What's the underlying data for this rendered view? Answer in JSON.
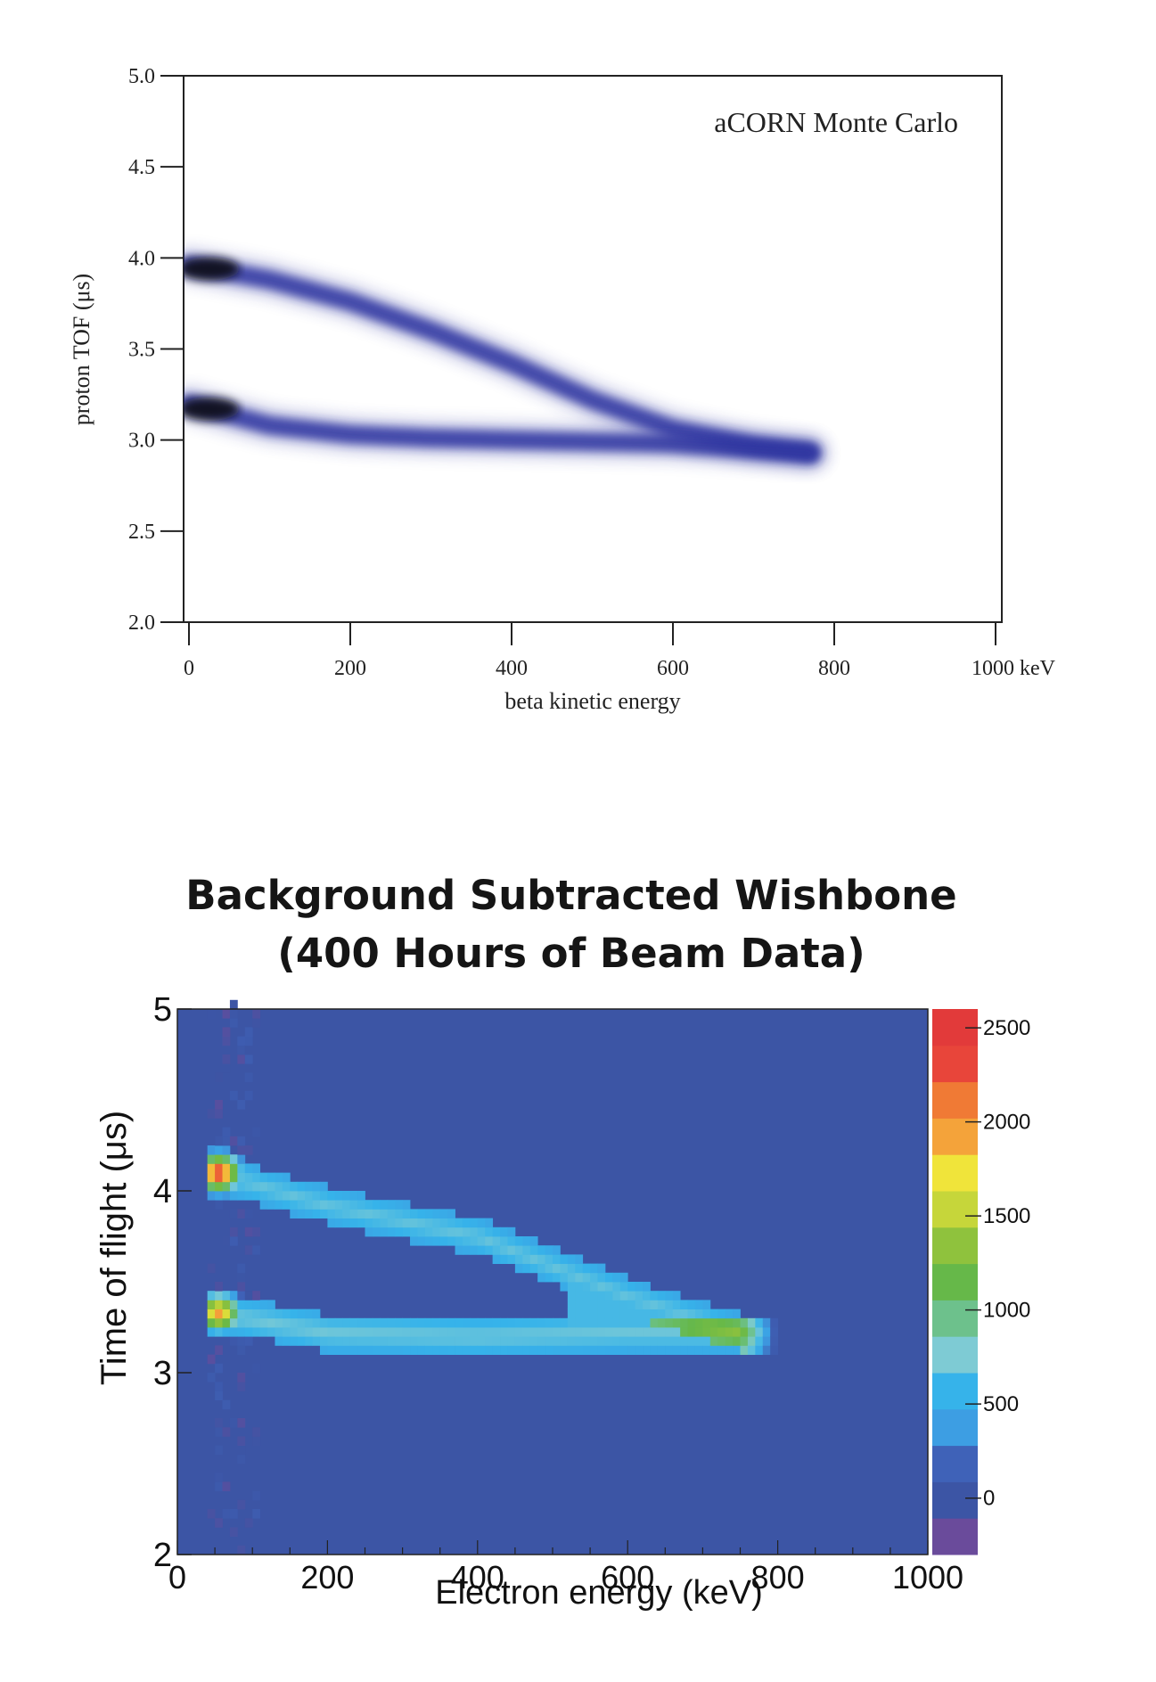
{
  "chart_data": [
    {
      "type": "heatmap",
      "title": "",
      "annotation": "aCORN Monte Carlo",
      "xlabel": "beta kinetic energy",
      "ylabel": "proton TOF (μs)",
      "xlim": [
        0,
        1000
      ],
      "ylim": [
        2.0,
        5.0
      ],
      "x_tick_labels": [
        "0",
        "200",
        "400",
        "600",
        "800",
        "1000 keV"
      ],
      "y_tick_labels": [
        "2.0",
        "2.5",
        "3.0",
        "3.5",
        "4.0",
        "4.5",
        "5.0"
      ],
      "grid": false,
      "colors": {
        "band": "#2f36a0",
        "peak": "#101018"
      },
      "bands": [
        {
          "name": "",
          "points": [
            [
              0,
              3.96
            ],
            [
              100,
              3.88
            ],
            [
              200,
              3.76
            ],
            [
              300,
              3.6
            ],
            [
              400,
              3.42
            ],
            [
              500,
              3.22
            ],
            [
              600,
              3.06
            ],
            [
              700,
              2.97
            ],
            [
              770,
              2.93
            ]
          ]
        },
        {
          "name": "",
          "points": [
            [
              0,
              3.2
            ],
            [
              100,
              3.08
            ],
            [
              200,
              3.03
            ],
            [
              300,
              3.01
            ],
            [
              400,
              3.0
            ],
            [
              500,
              2.99
            ],
            [
              600,
              2.98
            ],
            [
              700,
              2.95
            ],
            [
              770,
              2.93
            ]
          ]
        }
      ]
    },
    {
      "type": "heatmap",
      "title": "Background Subtracted Wishbone",
      "subtitle": "(400 Hours of Beam Data)",
      "xlabel": "Electron energy (keV)",
      "ylabel": "Time of flight (μs)",
      "xlim": [
        0,
        1000
      ],
      "ylim": [
        2,
        5
      ],
      "x_tick_labels": [
        "0",
        "200",
        "400",
        "600",
        "800",
        "1000"
      ],
      "y_tick_labels": [
        "2",
        "3",
        "4",
        "5"
      ],
      "grid": false,
      "colorbar": {
        "range": [
          -300,
          2600
        ],
        "tick_labels": [
          "0",
          "500",
          "1000",
          "1500",
          "2000",
          "2500"
        ],
        "tick_values": [
          0,
          500,
          1000,
          1500,
          2000,
          2500
        ]
      },
      "colors": {
        "background": "#3c55a5"
      },
      "bands": [
        {
          "name": "",
          "points": [
            [
              50,
              4.1
            ],
            [
              200,
              3.92
            ],
            [
              400,
              3.75
            ],
            [
              600,
              3.42
            ],
            [
              750,
              3.22
            ]
          ]
        },
        {
          "name": "",
          "points": [
            [
              50,
              3.33
            ],
            [
              200,
              3.22
            ],
            [
              400,
              3.2
            ],
            [
              600,
              3.22
            ],
            [
              750,
              3.22
            ]
          ]
        }
      ],
      "peaks": [
        {
          "x": 55,
          "y": 4.1,
          "value": 2500
        },
        {
          "x": 55,
          "y": 3.33,
          "value": 2100
        }
      ]
    }
  ]
}
